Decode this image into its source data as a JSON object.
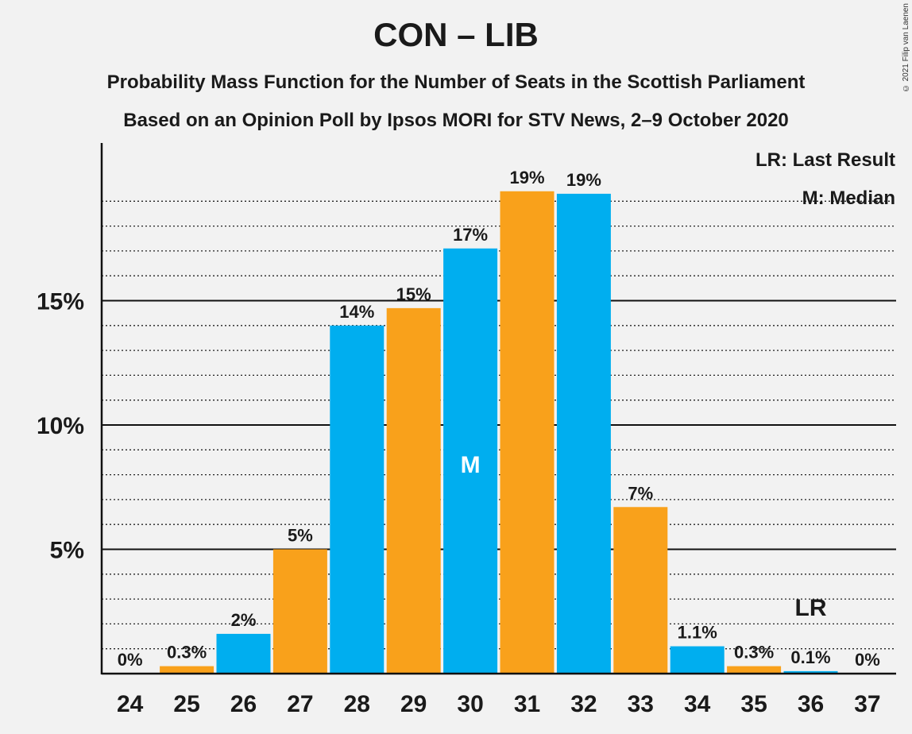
{
  "chart_data": {
    "type": "bar",
    "title": "CON – LIB",
    "subtitle": "Probability Mass Function for the Number of Seats in the Scottish Parliament",
    "subtitle2": "Based on an Opinion Poll by Ipsos MORI for STV News, 2–9 October 2020",
    "copyright": "© 2021 Filip van Laenen",
    "categories": [
      "24",
      "25",
      "26",
      "27",
      "28",
      "29",
      "30",
      "31",
      "32",
      "33",
      "34",
      "35",
      "36",
      "37"
    ],
    "values": [
      0,
      0.3,
      1.6,
      5.0,
      14.0,
      14.7,
      17.1,
      19.4,
      19.3,
      6.7,
      1.1,
      0.3,
      0.1,
      0
    ],
    "value_labels": [
      "0%",
      "0.3%",
      "2%",
      "5%",
      "14%",
      "15%",
      "17%",
      "19%",
      "19%",
      "7%",
      "1.1%",
      "0.3%",
      "0.1%",
      "0%"
    ],
    "yticks": [
      5,
      10,
      15
    ],
    "ytick_labels": [
      "5%",
      "10%",
      "15%"
    ],
    "ylim": [
      0,
      21.2
    ],
    "colors": [
      "#00aeef",
      "#f9a11b"
    ],
    "median_seat": "30",
    "median_marker": "M",
    "last_result_seat": "36",
    "last_result_marker": "LR",
    "legend": [
      "LR: Last Result",
      "M: Median"
    ],
    "legend_position": "top-right"
  }
}
